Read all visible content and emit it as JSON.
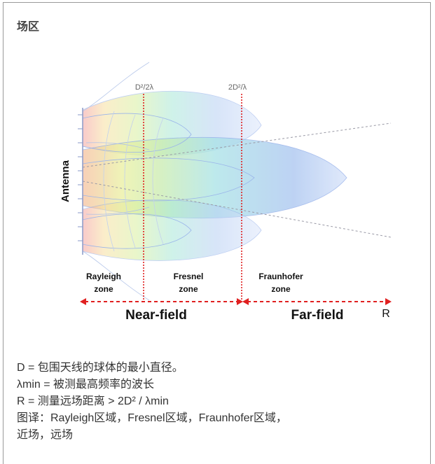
{
  "header": {
    "title": "场区"
  },
  "diagram": {
    "boundary_labels": [
      "D²/2λ",
      "2D²/λ"
    ],
    "antenna_label": "Antenna",
    "zones": [
      {
        "line1": "Rayleigh",
        "line2": "zone"
      },
      {
        "line1": "Fresnel",
        "line2": "zone"
      },
      {
        "line1": "Fraunhofer",
        "line2": "zone"
      }
    ],
    "regions": [
      "Near-field",
      "Far-field"
    ],
    "axis_label": "R",
    "colors": {
      "boundary": "#e02020",
      "beam": "#8aa8e8"
    }
  },
  "caption": {
    "lines": [
      "D = 包围天线的球体的最小直径。",
      "λmin = 被测最高频率的波长",
      "R = 测量远场距离  > 2D² / λmin",
      "图译：Rayleigh区域，Fresnel区域，Fraunhofer区域，",
      "近场，远场"
    ]
  }
}
